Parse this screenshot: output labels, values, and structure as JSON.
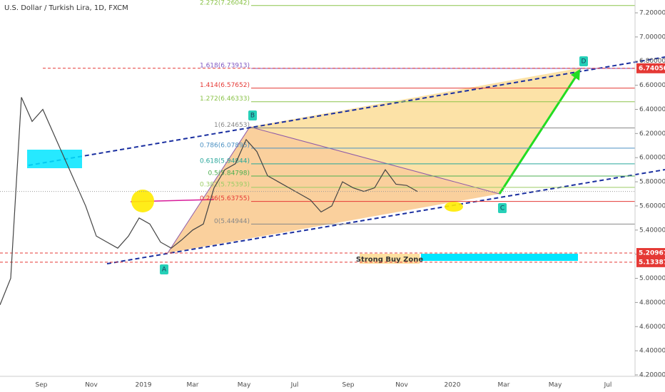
{
  "chart_data": {
    "type": "line",
    "title": "U.S. Dollar / Turkish Lira, 1D, FXCM",
    "color": "#444444",
    "values": [
      4.78,
      5.0,
      6.5,
      6.3,
      6.4,
      6.2,
      6.0,
      5.8,
      5.6,
      5.35,
      5.3,
      5.25,
      5.35,
      5.5,
      5.45,
      5.3,
      5.25,
      5.32,
      5.4,
      5.45,
      5.75,
      5.9,
      5.95,
      6.15,
      6.05,
      5.85,
      5.8,
      5.75,
      5.7,
      5.65,
      5.55,
      5.6,
      5.8,
      5.75,
      5.72,
      5.75,
      5.9,
      5.78,
      5.77,
      5.72
    ],
    "ylim": [
      4.2,
      7.2
    ],
    "yticks": [
      {
        "value": 4.2,
        "label": "4.20000"
      },
      {
        "value": 4.4,
        "label": "4.40000"
      },
      {
        "value": 4.6,
        "label": "4.60000"
      },
      {
        "value": 4.8,
        "label": "4.80000"
      },
      {
        "value": 5.0,
        "label": "5.00000"
      },
      {
        "value": 5.2,
        "label": "5.20000"
      },
      {
        "value": 5.4,
        "label": "5.40000"
      },
      {
        "value": 5.6,
        "label": "5.60000"
      },
      {
        "value": 5.8,
        "label": "5.80000"
      },
      {
        "value": 6.0,
        "label": "6.00000"
      },
      {
        "value": 6.2,
        "label": "6.20000"
      },
      {
        "value": 6.4,
        "label": "6.40000"
      },
      {
        "value": 6.6,
        "label": "6.60000"
      },
      {
        "value": 6.8,
        "label": "6.80000"
      },
      {
        "value": 7.0,
        "label": "7.00000"
      },
      {
        "value": 7.2,
        "label": "7.20000"
      }
    ],
    "xticks": [
      "Sep",
      "Nov",
      "2019",
      "Mar",
      "May",
      "Jul",
      "Sep",
      "Nov",
      "2020",
      "Mar",
      "May",
      "Jul"
    ],
    "fib_levels": [
      {
        "label": "2.272(7.26042)",
        "value": 7.26042,
        "color": "#8bc34a"
      },
      {
        "label": "1.618(6.73913)",
        "value": 6.73913,
        "color": "#7e57c2"
      },
      {
        "label": "1.414(6.57652)",
        "value": 6.57652,
        "color": "#e53935"
      },
      {
        "label": "1.272(6.46333)",
        "value": 6.46333,
        "color": "#8bc34a"
      },
      {
        "label": "1(6.24653)",
        "value": 6.24653,
        "color": "#888888"
      },
      {
        "label": "0.786(6.07895)",
        "value": 6.07895,
        "color": "#4a90c2"
      },
      {
        "label": "0.618(5.94844)",
        "value": 5.94844,
        "color": "#26a69a"
      },
      {
        "label": "0.5(5.84798)",
        "value": 5.84798,
        "color": "#4caf50"
      },
      {
        "label": "0.382(5.75393)",
        "value": 5.75393,
        "color": "#9ccc65"
      },
      {
        "label": "0.236(5.63755)",
        "value": 5.63755,
        "color": "#e53935"
      },
      {
        "label": "0(5.44944)",
        "value": 5.44944,
        "color": "#888888"
      }
    ],
    "price_labels": [
      {
        "value": 6.7405,
        "label": "6.74050"
      },
      {
        "value": 5.20967,
        "label": "5.20967"
      },
      {
        "value": 5.13387,
        "label": "5.13387"
      }
    ],
    "points": [
      "A",
      "B",
      "C",
      "D"
    ],
    "zone_label": "Strong Buy Zone"
  }
}
